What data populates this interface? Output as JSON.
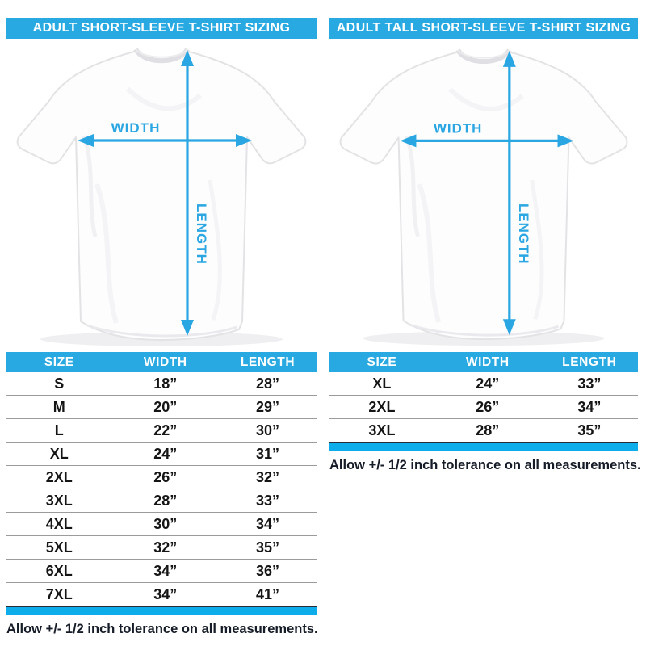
{
  "colors": {
    "header_blue": "#29a9e1",
    "accent_cyan": "#0cadea",
    "arrow_blue": "#2aa7e2",
    "text_dark": "#161c28"
  },
  "diagram": {
    "width_label": "WIDTH",
    "length_label": "LENGTH"
  },
  "chart_data": [
    {
      "type": "table",
      "title": "ADULT SHORT-SLEEVE T-SHIRT SIZING",
      "columns": [
        "SIZE",
        "WIDTH",
        "LENGTH"
      ],
      "rows": [
        [
          "S",
          "18”",
          "28”"
        ],
        [
          "M",
          "20”",
          "29”"
        ],
        [
          "L",
          "22”",
          "30”"
        ],
        [
          "XL",
          "24”",
          "31”"
        ],
        [
          "2XL",
          "26”",
          "32”"
        ],
        [
          "3XL",
          "28”",
          "33”"
        ],
        [
          "4XL",
          "30”",
          "34”"
        ],
        [
          "5XL",
          "32”",
          "35”"
        ],
        [
          "6XL",
          "34”",
          "36”"
        ],
        [
          "7XL",
          "34”",
          "41”"
        ]
      ],
      "footnote": "Allow +/- 1/2 inch tolerance on all measurements."
    },
    {
      "type": "table",
      "title": "ADULT TALL SHORT-SLEEVE T-SHIRT SIZING",
      "columns": [
        "SIZE",
        "WIDTH",
        "LENGTH"
      ],
      "rows": [
        [
          "XL",
          "24”",
          "33”"
        ],
        [
          "2XL",
          "26”",
          "34”"
        ],
        [
          "3XL",
          "28”",
          "35”"
        ]
      ],
      "footnote": "Allow +/- 1/2 inch tolerance on all measurements."
    }
  ]
}
